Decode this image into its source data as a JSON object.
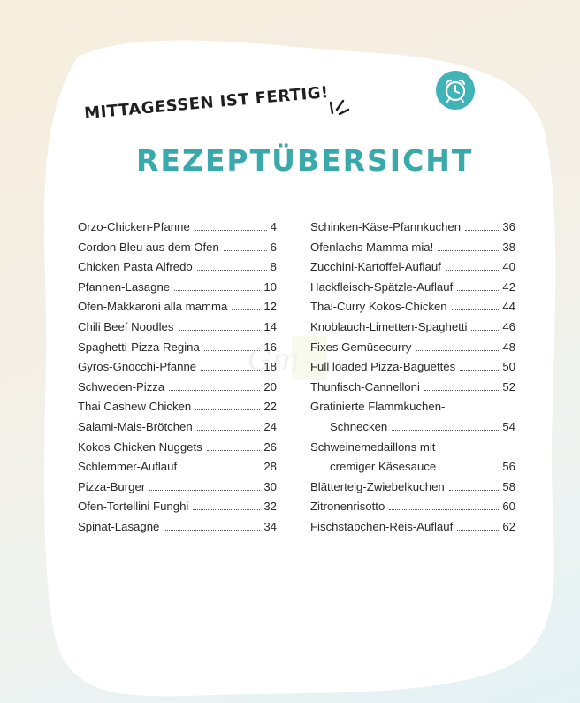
{
  "header": {
    "supertitle": "MITTAGESSEN IST FERTIG!",
    "title": "REZEPTÜBERSICHT"
  },
  "toc_left": [
    {
      "title": "Orzo-Chicken-Pfanne",
      "page": "4"
    },
    {
      "title": "Cordon Bleu aus dem Ofen",
      "page": "6"
    },
    {
      "title": "Chicken Pasta Alfredo",
      "page": "8"
    },
    {
      "title": "Pfannen-Lasagne",
      "page": "10"
    },
    {
      "title": "Ofen-Makkaroni alla mamma",
      "page": "12"
    },
    {
      "title": "Chili Beef Noodles",
      "page": "14"
    },
    {
      "title": "Spaghetti-Pizza Regina",
      "page": "16"
    },
    {
      "title": "Gyros-Gnocchi-Pfanne",
      "page": "18"
    },
    {
      "title": "Schweden-Pizza",
      "page": "20"
    },
    {
      "title": "Thai Cashew Chicken",
      "page": "22"
    },
    {
      "title": "Salami-Mais-Brötchen",
      "page": "24"
    },
    {
      "title": "Kokos Chicken Nuggets",
      "page": "26"
    },
    {
      "title": "Schlemmer-Auflauf",
      "page": "28"
    },
    {
      "title": "Pizza-Burger",
      "page": "30"
    },
    {
      "title": "Ofen-Tortellini Funghi",
      "page": "32"
    },
    {
      "title": "Spinat-Lasagne",
      "page": "34"
    }
  ],
  "toc_right": [
    {
      "title": "Schinken-Käse-Pfannkuchen",
      "page": "36"
    },
    {
      "title": "Ofenlachs Mamma mia!",
      "page": "38"
    },
    {
      "title": "Zucchini-Kartoffel-Auflauf",
      "page": "40"
    },
    {
      "title": "Hackfleisch-Spätzle-Auflauf",
      "page": "42"
    },
    {
      "title": "Thai-Curry Kokos-Chicken",
      "page": "44"
    },
    {
      "title": "Knoblauch-Limetten-Spaghetti",
      "page": "46"
    },
    {
      "title": "Fixes Gemüsecurry",
      "page": "48"
    },
    {
      "title": "Full loaded Pizza-Baguettes",
      "page": "50"
    },
    {
      "title": "Thunfisch-Cannelloni",
      "page": "52"
    },
    {
      "title": "Gratinierte Flammkuchen-",
      "page": ""
    },
    {
      "title": "Schnecken",
      "page": "54"
    },
    {
      "title": "Schweinemedaillons mit",
      "page": ""
    },
    {
      "title": "cremiger Käsesauce",
      "page": "56"
    },
    {
      "title": "Blätterteig-Zwiebelkuchen",
      "page": "58"
    },
    {
      "title": "Zitronenrisotto",
      "page": "60"
    },
    {
      "title": "Fischstäbchen-Reis-Auflauf",
      "page": "62"
    }
  ],
  "colors": {
    "accent": "#3aa9ac",
    "text": "#2a2a2a",
    "card": "#ffffff"
  },
  "icons": {
    "header_icon": "alarm-clock-icon"
  }
}
